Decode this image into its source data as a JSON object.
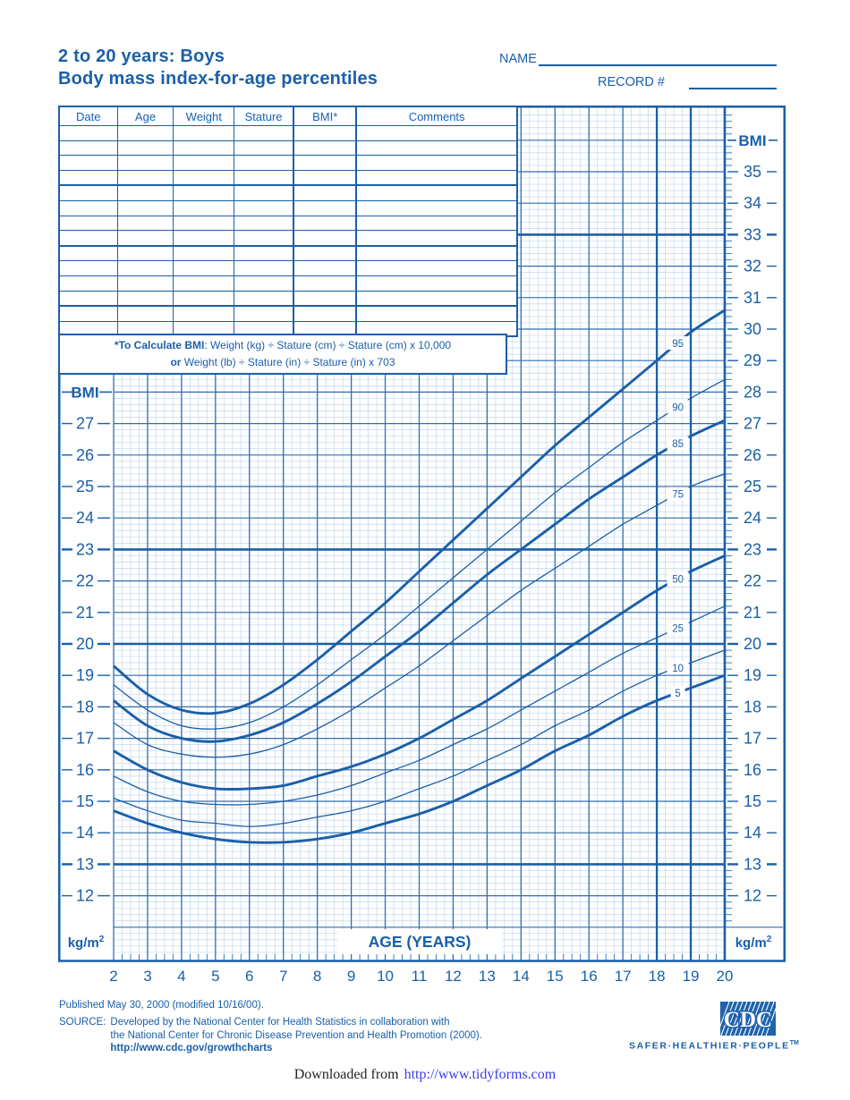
{
  "colors": {
    "accent": "#1A5FA9",
    "grid_medium": "#2F6EB3",
    "grid_fine": "#C2D7EE",
    "link_blue": "#3B3BE8",
    "logo_blue": "#1F63AD",
    "paper": "#FFFFFF"
  },
  "header": {
    "title_line1": "2 to 20 years: Boys",
    "title_line2": "Body mass index-for-age percentiles",
    "name_label": "NAME",
    "name_value": "",
    "record_label": "RECORD #",
    "record_value": ""
  },
  "table": {
    "headers": [
      "Date",
      "Age",
      "Weight",
      "Stature",
      "BMI*",
      "Comments"
    ],
    "rows": 14,
    "group_size": 4,
    "cell_values": ""
  },
  "note": {
    "line1_bold": "*To Calculate BMI",
    "line1_rest": ": Weight (kg) ÷ Stature (cm) ÷ Stature (cm) x 10,000",
    "line2_bold": "or",
    "line2_rest": " Weight (lb) ÷ Stature (in) ÷ Stature (in) x 703"
  },
  "chart_data": {
    "type": "line",
    "title": "Body mass index-for-age percentiles, boys 2 to 20 years",
    "xlabel": "AGE (YEARS)",
    "ylabel": "BMI",
    "y_unit": "kg/m2",
    "xlim": [
      2,
      20
    ],
    "ylim": [
      10,
      37
    ],
    "grid": {
      "fine_step_age_years": 0.25,
      "fine_step_bmi": 0.2,
      "unit_step": 1,
      "bold_bmi_lines": [
        13,
        20,
        23,
        33
      ],
      "bold_age_lines": [
        18,
        19,
        20
      ],
      "grid_on": true
    },
    "x": [
      2,
      3,
      4,
      5,
      6,
      7,
      8,
      9,
      10,
      11,
      12,
      13,
      14,
      15,
      16,
      17,
      18,
      19,
      20
    ],
    "x_tick_labels": [
      "2",
      "3",
      "4",
      "5",
      "6",
      "7",
      "8",
      "9",
      "10",
      "11",
      "12",
      "13",
      "14",
      "15",
      "16",
      "17",
      "18",
      "19",
      "20"
    ],
    "left_axis_ticks": [
      27,
      26,
      25,
      24,
      23,
      22,
      21,
      20,
      19,
      18,
      17,
      16,
      15,
      14,
      13,
      12
    ],
    "right_axis_ticks": [
      35,
      34,
      33,
      32,
      31,
      30,
      29,
      28,
      27,
      26,
      25,
      24,
      23,
      22,
      21,
      20,
      19,
      18,
      17,
      16,
      15,
      14,
      13,
      12
    ],
    "percentile_label_age": 18.62,
    "legend_position": "on-curve-right",
    "series": [
      {
        "name": "95th percentile",
        "label": "95",
        "bold": true,
        "values": [
          19.3,
          18.4,
          17.9,
          17.8,
          18.1,
          18.7,
          19.5,
          20.4,
          21.3,
          22.3,
          23.3,
          24.3,
          25.3,
          26.3,
          27.2,
          28.1,
          29.0,
          29.9,
          30.6
        ]
      },
      {
        "name": "90th percentile",
        "label": "90",
        "bold": false,
        "values": [
          18.7,
          17.9,
          17.4,
          17.3,
          17.5,
          18.0,
          18.7,
          19.5,
          20.3,
          21.2,
          22.1,
          23.0,
          23.9,
          24.8,
          25.6,
          26.4,
          27.1,
          27.8,
          28.4
        ]
      },
      {
        "name": "85th percentile",
        "label": "85",
        "bold": true,
        "values": [
          18.2,
          17.4,
          17.0,
          16.9,
          17.1,
          17.5,
          18.1,
          18.8,
          19.6,
          20.4,
          21.3,
          22.2,
          23.0,
          23.8,
          24.6,
          25.3,
          26.0,
          26.6,
          27.1
        ]
      },
      {
        "name": "75th percentile",
        "label": "75",
        "bold": false,
        "values": [
          17.5,
          16.8,
          16.5,
          16.4,
          16.5,
          16.8,
          17.3,
          17.9,
          18.6,
          19.3,
          20.1,
          20.9,
          21.7,
          22.4,
          23.1,
          23.8,
          24.4,
          25.0,
          25.4
        ]
      },
      {
        "name": "50th percentile",
        "label": "50",
        "bold": true,
        "values": [
          16.6,
          16.0,
          15.6,
          15.4,
          15.4,
          15.5,
          15.8,
          16.1,
          16.5,
          17.0,
          17.6,
          18.2,
          18.9,
          19.6,
          20.3,
          21.0,
          21.7,
          22.3,
          22.8
        ]
      },
      {
        "name": "25th percentile",
        "label": "25",
        "bold": false,
        "values": [
          15.8,
          15.3,
          15.0,
          14.9,
          14.9,
          15.0,
          15.2,
          15.5,
          15.9,
          16.3,
          16.8,
          17.3,
          17.9,
          18.5,
          19.1,
          19.7,
          20.2,
          20.7,
          21.2
        ]
      },
      {
        "name": "10th percentile",
        "label": "10",
        "bold": false,
        "values": [
          15.1,
          14.7,
          14.4,
          14.3,
          14.2,
          14.3,
          14.5,
          14.7,
          15.0,
          15.4,
          15.8,
          16.3,
          16.8,
          17.4,
          17.9,
          18.5,
          19.0,
          19.4,
          19.8
        ]
      },
      {
        "name": "5th percentile",
        "label": "5",
        "bold": true,
        "values": [
          14.7,
          14.3,
          14.0,
          13.8,
          13.7,
          13.7,
          13.8,
          14.0,
          14.3,
          14.6,
          15.0,
          15.5,
          16.0,
          16.6,
          17.1,
          17.7,
          18.2,
          18.6,
          19.0
        ]
      }
    ]
  },
  "axis_text": {
    "bmi_title": "BMI",
    "age_axis_title": "AGE (YEARS)",
    "unit_label_prefix": "kg/m",
    "unit_label_sup": "2"
  },
  "footer": {
    "published": "Published May 30, 2000 (modified 10/16/00).",
    "source_label": "SOURCE:",
    "source_line1": "Developed by the National Center for Health Statistics in collaboration with",
    "source_line2": "the National Center for Chronic Disease Prevention and Health Promotion (2000).",
    "source_url": "http://www.cdc.gov/growthcharts",
    "cdc_logo_text": "CDC",
    "tagline": "SAFER·HEALTHIER·PEOPLE",
    "tagline_tm": "TM"
  },
  "download_bar": {
    "prefix": "Downloaded from",
    "url": "http://www.tidyforms.com"
  }
}
